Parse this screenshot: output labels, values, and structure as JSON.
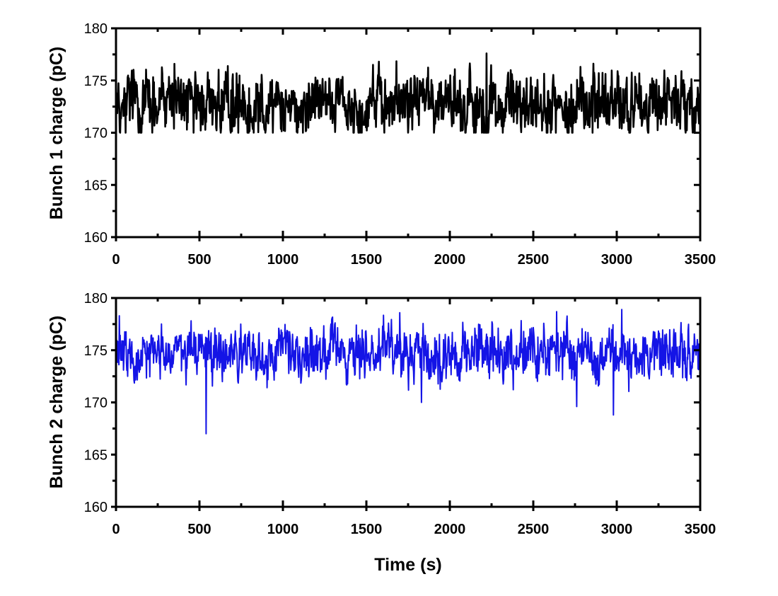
{
  "chart_data": [
    {
      "type": "line",
      "title": "",
      "xlabel": "",
      "ylabel": "Bunch 1 charge (pC)",
      "xlim": [
        0,
        3500
      ],
      "ylim": [
        160,
        180
      ],
      "x_ticks": [
        0,
        500,
        1000,
        1500,
        2000,
        2500,
        3000,
        3500
      ],
      "y_ticks": [
        160,
        165,
        170,
        175,
        180
      ],
      "grid": false,
      "color": "#000000",
      "series": [
        {
          "name": "Bunch 1",
          "mean": 172.8,
          "noise_amplitude": 2.0,
          "min": 170.0,
          "max": 177.6,
          "sample_points": [
            {
              "x": 0,
              "y": 172.5
            },
            {
              "x": 350,
              "y": 176.6
            },
            {
              "x": 500,
              "y": 173.0
            },
            {
              "x": 1000,
              "y": 173.2
            },
            {
              "x": 1500,
              "y": 173.0
            },
            {
              "x": 1540,
              "y": 176.5
            },
            {
              "x": 2000,
              "y": 173.0
            },
            {
              "x": 2220,
              "y": 177.6
            },
            {
              "x": 2500,
              "y": 173.0
            },
            {
              "x": 3000,
              "y": 172.8
            },
            {
              "x": 3500,
              "y": 173.0
            }
          ]
        }
      ]
    },
    {
      "type": "line",
      "title": "",
      "xlabel": "Time (s)",
      "ylabel": "Bunch 2 charge (pC)",
      "xlim": [
        0,
        3500
      ],
      "ylim": [
        160,
        180
      ],
      "x_ticks": [
        0,
        500,
        1000,
        1500,
        2000,
        2500,
        3000,
        3500
      ],
      "y_ticks": [
        160,
        165,
        170,
        175,
        180
      ],
      "grid": false,
      "color": "#1414e6",
      "series": [
        {
          "name": "Bunch 2",
          "mean": 174.7,
          "noise_amplitude": 1.6,
          "min": 167.0,
          "max": 178.9,
          "sample_points": [
            {
              "x": 0,
              "y": 174.5
            },
            {
              "x": 20,
              "y": 178.3
            },
            {
              "x": 540,
              "y": 167.0
            },
            {
              "x": 1000,
              "y": 174.7
            },
            {
              "x": 1700,
              "y": 178.6
            },
            {
              "x": 1830,
              "y": 170.0
            },
            {
              "x": 2000,
              "y": 174.7
            },
            {
              "x": 2640,
              "y": 178.7
            },
            {
              "x": 2760,
              "y": 169.6
            },
            {
              "x": 2980,
              "y": 168.8
            },
            {
              "x": 3030,
              "y": 178.9
            },
            {
              "x": 3500,
              "y": 174.5
            }
          ]
        }
      ]
    }
  ],
  "labels": {
    "top_ylabel": "Bunch 1 charge (pC)",
    "bottom_ylabel": "Bunch 2 charge (pC)",
    "xlabel": "Time (s)",
    "x_tick_labels": [
      "0",
      "500",
      "1000",
      "1500",
      "2000",
      "2500",
      "3000",
      "3500"
    ],
    "y_tick_labels": [
      "160",
      "165",
      "170",
      "175",
      "180"
    ]
  }
}
